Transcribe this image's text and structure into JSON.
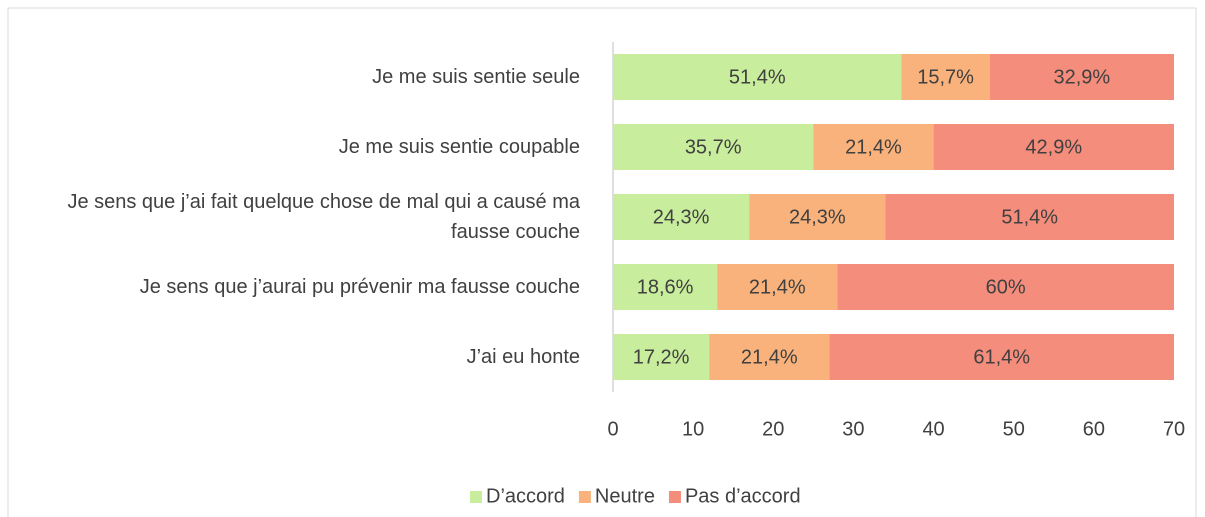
{
  "chart_data": {
    "type": "stacked_bar_horizontal",
    "categories": [
      "Je me suis sentie seule",
      "Je me suis sentie coupable",
      "Je sens que j’ai fait quelque chose de mal qui a causé ma fausse couche",
      "Je sens que j’aurai pu prévenir ma fausse couche",
      "J’ai eu honte"
    ],
    "series": [
      {
        "name": "D’accord",
        "color": "#c8ed9c",
        "values": [
          36,
          25,
          17,
          13,
          12
        ],
        "value_labels": [
          "51,4%",
          "35,7%",
          "24,3%",
          "18,6%",
          "17,2%"
        ]
      },
      {
        "name": "Neutre",
        "color": "#f9b27b",
        "values": [
          11,
          15,
          17,
          15,
          15
        ],
        "value_labels": [
          "15,7%",
          "21,4%",
          "24,3%",
          "21,4%",
          "21,4%"
        ]
      },
      {
        "name": "Pas d’accord",
        "color": "#f58d7d",
        "values": [
          23,
          30,
          36,
          42,
          43
        ],
        "value_labels": [
          "32,9%",
          "42,9%",
          "51,4%",
          "60%",
          "61,4%"
        ]
      }
    ],
    "xlim": [
      0,
      70
    ],
    "xticks": [
      0,
      10,
      20,
      30,
      40,
      50,
      60,
      70
    ],
    "legend": "bottom"
  }
}
